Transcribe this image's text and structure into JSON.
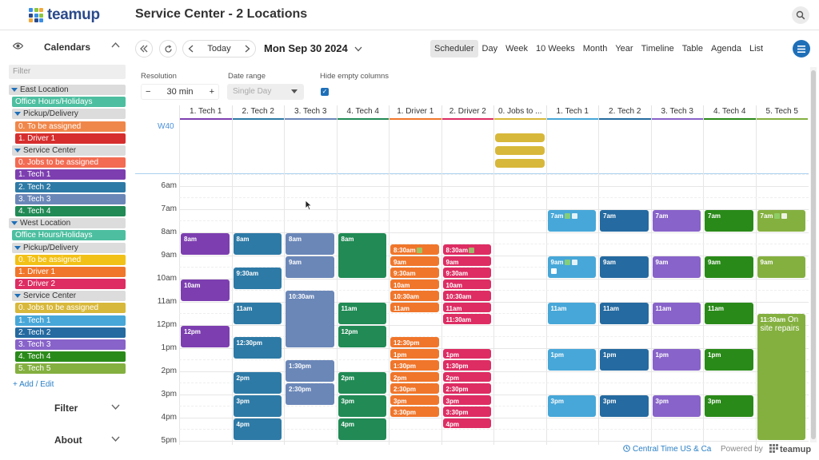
{
  "app": {
    "logo_text": "teamup",
    "title": "Service Center - 2 Locations",
    "logo_colors": [
      "#3a8ee6",
      "#8cc63f",
      "#f2a93b",
      "#2b4a8a",
      "#3a8ee6",
      "#8cc63f",
      "#f2a93b",
      "#2b4a8a",
      "#3a8ee6"
    ]
  },
  "sidebar": {
    "header": "Calendars",
    "filter_placeholder": "Filter",
    "items": [
      {
        "type": "group",
        "label": "East Location",
        "indent": 0
      },
      {
        "type": "cal",
        "label": "Office Hours/Holidays",
        "color": "#4dbfa0",
        "indent": 12
      },
      {
        "type": "group",
        "label": "Pickup/Delivery",
        "indent": 12
      },
      {
        "type": "cal",
        "label": "0. To be assigned",
        "color": "#f0874a",
        "indent": 24
      },
      {
        "type": "cal",
        "label": "1. Driver 1",
        "color": "#d62e2e",
        "indent": 24
      },
      {
        "type": "group",
        "label": "Service Center",
        "indent": 12
      },
      {
        "type": "cal",
        "label": "0. Jobs to be assigned",
        "color": "#f26b52",
        "indent": 24
      },
      {
        "type": "cal",
        "label": "1. Tech 1",
        "color": "#7d3fb0",
        "indent": 24
      },
      {
        "type": "cal",
        "label": "2. Tech 2",
        "color": "#2e7aa6",
        "indent": 24
      },
      {
        "type": "cal",
        "label": "3. Tech 3",
        "color": "#6b87b8",
        "indent": 24
      },
      {
        "type": "cal",
        "label": "4. Tech 4",
        "color": "#218a55",
        "indent": 24
      },
      {
        "type": "group",
        "label": "West Location",
        "indent": 0
      },
      {
        "type": "cal",
        "label": "Office Hours/Holidays",
        "color": "#4dbfa0",
        "indent": 12
      },
      {
        "type": "group",
        "label": "Pickup/Delivery",
        "indent": 12
      },
      {
        "type": "cal",
        "label": "0. To be assigned",
        "color": "#f2c117",
        "indent": 24
      },
      {
        "type": "cal",
        "label": "1. Driver 1",
        "color": "#f0762b",
        "indent": 24
      },
      {
        "type": "cal",
        "label": "2. Driver 2",
        "color": "#dd2d63",
        "indent": 24
      },
      {
        "type": "group",
        "label": "Service Center",
        "indent": 12
      },
      {
        "type": "cal",
        "label": "0. Jobs to be assigned",
        "color": "#d8b83a",
        "indent": 24
      },
      {
        "type": "cal",
        "label": "1. Tech 1",
        "color": "#47a7d8",
        "indent": 24
      },
      {
        "type": "cal",
        "label": "2. Tech 2",
        "color": "#256aa0",
        "indent": 24
      },
      {
        "type": "cal",
        "label": "3. Tech 3",
        "color": "#8863c9",
        "indent": 24
      },
      {
        "type": "cal",
        "label": "4. Tech 4",
        "color": "#2a8a19",
        "indent": 24
      },
      {
        "type": "cal",
        "label": "5. Tech 5",
        "color": "#84b040",
        "indent": 24
      }
    ],
    "add_edit": "+ Add / Edit",
    "filter_section": "Filter",
    "about_section": "About"
  },
  "toolbar": {
    "today": "Today",
    "date": "Mon Sep 30 2024",
    "views": [
      "Scheduler",
      "Day",
      "Week",
      "10 Weeks",
      "Month",
      "Year",
      "Timeline",
      "Table",
      "Agenda",
      "List"
    ],
    "active_view": "Scheduler"
  },
  "options": {
    "resolution_label": "Resolution",
    "resolution_value": "30 min",
    "date_range_label": "Date range",
    "date_range_value": "Single Day",
    "hide_empty_label": "Hide empty columns",
    "hide_empty_checked": true
  },
  "scheduler": {
    "week_label": "W40",
    "columns": [
      {
        "label": "1. Tech 1",
        "color": "#7d3fb0"
      },
      {
        "label": "2. Tech 2",
        "color": "#2e7aa6"
      },
      {
        "label": "3. Tech 3",
        "color": "#6b87b8"
      },
      {
        "label": "4. Tech 4",
        "color": "#218a55"
      },
      {
        "label": "1. Driver 1",
        "color": "#f0762b"
      },
      {
        "label": "2. Driver 2",
        "color": "#dd2d63"
      },
      {
        "label": "0. Jobs to ...",
        "color": "#d8b83a"
      },
      {
        "label": "1. Tech 1",
        "color": "#47a7d8"
      },
      {
        "label": "2. Tech 2",
        "color": "#256aa0"
      },
      {
        "label": "3. Tech 3",
        "color": "#8863c9"
      },
      {
        "label": "4. Tech 4",
        "color": "#2a8a19"
      },
      {
        "label": "5. Tech 5",
        "color": "#84b040"
      }
    ],
    "hours": [
      "6am",
      "7am",
      "8am",
      "9am",
      "10am",
      "11am",
      "12pm",
      "1pm",
      "2pm",
      "3pm",
      "4pm",
      "5pm"
    ],
    "allday_events": [
      {
        "col": 6
      },
      {
        "col": 6
      },
      {
        "col": 6
      }
    ],
    "events": [
      {
        "col": 0,
        "start": 8,
        "end": 9,
        "text": "8am"
      },
      {
        "col": 0,
        "start": 10,
        "end": 11,
        "text": "10am"
      },
      {
        "col": 0,
        "start": 12,
        "end": 13,
        "text": "12pm"
      },
      {
        "col": 1,
        "start": 8,
        "end": 9,
        "text": "8am"
      },
      {
        "col": 1,
        "start": 9.5,
        "end": 10.5,
        "text": "9:30am"
      },
      {
        "col": 1,
        "start": 11,
        "end": 12,
        "text": "11am"
      },
      {
        "col": 1,
        "start": 12.5,
        "end": 13.5,
        "text": "12:30pm"
      },
      {
        "col": 1,
        "start": 14,
        "end": 15,
        "text": "2pm"
      },
      {
        "col": 1,
        "start": 15,
        "end": 16,
        "text": "3pm"
      },
      {
        "col": 1,
        "start": 16,
        "end": 17,
        "text": "4pm"
      },
      {
        "col": 2,
        "start": 8,
        "end": 9,
        "text": "8am"
      },
      {
        "col": 2,
        "start": 9,
        "end": 10,
        "text": "9am"
      },
      {
        "col": 2,
        "start": 10.5,
        "end": 13,
        "text": "10:30am"
      },
      {
        "col": 2,
        "start": 13.5,
        "end": 14.5,
        "text": "1:30pm"
      },
      {
        "col": 2,
        "start": 14.5,
        "end": 15.5,
        "text": "2:30pm"
      },
      {
        "col": 3,
        "start": 8,
        "end": 10,
        "text": "8am"
      },
      {
        "col": 3,
        "start": 11,
        "end": 12,
        "text": "11am"
      },
      {
        "col": 3,
        "start": 12,
        "end": 13,
        "text": "12pm"
      },
      {
        "col": 3,
        "start": 14,
        "end": 15,
        "text": "2pm"
      },
      {
        "col": 3,
        "start": 15,
        "end": 16,
        "text": "3pm"
      },
      {
        "col": 3,
        "start": 16,
        "end": 17,
        "text": "4pm"
      },
      {
        "col": 4,
        "start": 8.5,
        "end": 9,
        "text": "8:30am",
        "icons": 1
      },
      {
        "col": 4,
        "start": 9,
        "end": 9.5,
        "text": "9am"
      },
      {
        "col": 4,
        "start": 9.5,
        "end": 10,
        "text": "9:30am"
      },
      {
        "col": 4,
        "start": 10,
        "end": 10.5,
        "text": "10am"
      },
      {
        "col": 4,
        "start": 10.5,
        "end": 11,
        "text": "10:30am"
      },
      {
        "col": 4,
        "start": 11,
        "end": 11.5,
        "text": "11am"
      },
      {
        "col": 4,
        "start": 12.5,
        "end": 13,
        "text": "12:30pm"
      },
      {
        "col": 4,
        "start": 13,
        "end": 13.5,
        "text": "1pm"
      },
      {
        "col": 4,
        "start": 13.5,
        "end": 14,
        "text": "1:30pm"
      },
      {
        "col": 4,
        "start": 14,
        "end": 14.5,
        "text": "2pm"
      },
      {
        "col": 4,
        "start": 14.5,
        "end": 15,
        "text": "2:30pm"
      },
      {
        "col": 4,
        "start": 15,
        "end": 15.5,
        "text": "3pm"
      },
      {
        "col": 4,
        "start": 15.5,
        "end": 16,
        "text": "3:30pm"
      },
      {
        "col": 5,
        "start": 8.5,
        "end": 9,
        "text": "8:30am",
        "icons": 1,
        "checks": 3
      },
      {
        "col": 5,
        "start": 9,
        "end": 9.5,
        "text": "9am"
      },
      {
        "col": 5,
        "start": 9.5,
        "end": 10,
        "text": "9:30am"
      },
      {
        "col": 5,
        "start": 10,
        "end": 10.5,
        "text": "10am"
      },
      {
        "col": 5,
        "start": 10.5,
        "end": 11,
        "text": "10:30am"
      },
      {
        "col": 5,
        "start": 11,
        "end": 11.5,
        "text": "11am"
      },
      {
        "col": 5,
        "start": 11.5,
        "end": 12,
        "text": "11:30am"
      },
      {
        "col": 5,
        "start": 13,
        "end": 13.5,
        "text": "1pm"
      },
      {
        "col": 5,
        "start": 13.5,
        "end": 14,
        "text": "1:30pm"
      },
      {
        "col": 5,
        "start": 14,
        "end": 14.5,
        "text": "2pm"
      },
      {
        "col": 5,
        "start": 14.5,
        "end": 15,
        "text": "2:30pm"
      },
      {
        "col": 5,
        "start": 15,
        "end": 15.5,
        "text": "3pm"
      },
      {
        "col": 5,
        "start": 15.5,
        "end": 16,
        "text": "3:30pm"
      },
      {
        "col": 5,
        "start": 16,
        "end": 16.5,
        "text": "4pm"
      },
      {
        "col": 7,
        "start": 7,
        "end": 8,
        "text": "7am",
        "icons": 2
      },
      {
        "col": 7,
        "start": 9,
        "end": 10,
        "text": "9am",
        "icons": 2,
        "checks": 1
      },
      {
        "col": 7,
        "start": 11,
        "end": 12,
        "text": "11am"
      },
      {
        "col": 7,
        "start": 13,
        "end": 14,
        "text": "1pm"
      },
      {
        "col": 7,
        "start": 15,
        "end": 16,
        "text": "3pm"
      },
      {
        "col": 8,
        "start": 7,
        "end": 8,
        "text": "7am"
      },
      {
        "col": 8,
        "start": 9,
        "end": 10,
        "text": "9am"
      },
      {
        "col": 8,
        "start": 11,
        "end": 12,
        "text": "11am"
      },
      {
        "col": 8,
        "start": 13,
        "end": 14,
        "text": "1pm"
      },
      {
        "col": 8,
        "start": 15,
        "end": 16,
        "text": "3pm"
      },
      {
        "col": 9,
        "start": 7,
        "end": 8,
        "text": "7am"
      },
      {
        "col": 9,
        "start": 9,
        "end": 10,
        "text": "9am"
      },
      {
        "col": 9,
        "start": 11,
        "end": 12,
        "text": "11am"
      },
      {
        "col": 9,
        "start": 13,
        "end": 14,
        "text": "1pm"
      },
      {
        "col": 9,
        "start": 15,
        "end": 16,
        "text": "3pm"
      },
      {
        "col": 10,
        "start": 7,
        "end": 8,
        "text": "7am"
      },
      {
        "col": 10,
        "start": 9,
        "end": 10,
        "text": "9am"
      },
      {
        "col": 10,
        "start": 11,
        "end": 12,
        "text": "11am"
      },
      {
        "col": 10,
        "start": 13,
        "end": 14,
        "text": "1pm"
      },
      {
        "col": 10,
        "start": 15,
        "end": 16,
        "text": "3pm"
      },
      {
        "col": 11,
        "start": 7,
        "end": 8,
        "text": "7am",
        "icons": 2
      },
      {
        "col": 11,
        "start": 9,
        "end": 10,
        "text": "9am"
      },
      {
        "col": 11,
        "start": 11.5,
        "end": 17,
        "text": "11:30am",
        "desc": "On site repairs"
      }
    ]
  },
  "footer": {
    "timezone": "Central Time US & Ca",
    "powered_by": "Powered by",
    "brand": "teamup"
  }
}
